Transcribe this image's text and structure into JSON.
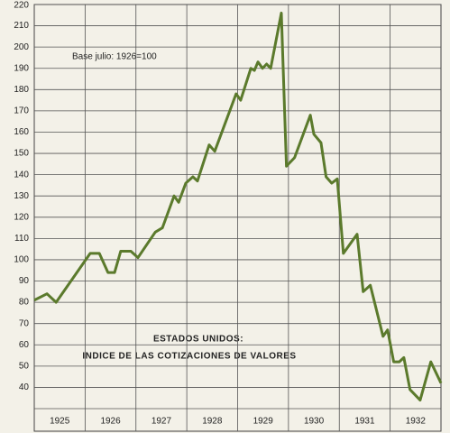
{
  "chart_data": {
    "type": "line",
    "annotations": [
      "Base julio: 1926=100",
      "ESTADOS UNIDOS:",
      "INDICE DE LAS COTIZACIONES DE VALORES"
    ],
    "categories": [
      "1925",
      "1926",
      "1927",
      "1928",
      "1929",
      "1930",
      "1931",
      "1932"
    ],
    "xlim": [
      1925,
      1933
    ],
    "ylim": [
      30,
      220
    ],
    "yticks": [
      40,
      50,
      60,
      70,
      80,
      90,
      100,
      110,
      120,
      130,
      140,
      150,
      160,
      170,
      180,
      190,
      200,
      210,
      220
    ],
    "grid": true,
    "series": [
      {
        "color": "#5b7a2c",
        "x": [
          1925.0,
          1925.25,
          1925.43,
          1926.1,
          1926.28,
          1926.45,
          1926.58,
          1926.7,
          1926.9,
          1927.04,
          1927.38,
          1927.52,
          1927.75,
          1927.84,
          1927.98,
          1928.12,
          1928.21,
          1928.44,
          1928.55,
          1928.97,
          1929.06,
          1929.26,
          1929.33,
          1929.4,
          1929.49,
          1929.57,
          1929.65,
          1929.86,
          1929.96,
          1930.12,
          1930.43,
          1930.5,
          1930.64,
          1930.74,
          1930.85,
          1930.96,
          1931.08,
          1931.35,
          1931.47,
          1931.61,
          1931.86,
          1931.95,
          1932.07,
          1932.18,
          1932.27,
          1932.39,
          1932.59,
          1932.8,
          1933.0
        ],
        "values": [
          81,
          84,
          80,
          103,
          103,
          94,
          94,
          104,
          104,
          101,
          113,
          115,
          130,
          127,
          136,
          139,
          137,
          154,
          151,
          178,
          175,
          190,
          189,
          193,
          190,
          192,
          190,
          216,
          144,
          148,
          168,
          159,
          155,
          139,
          136,
          138,
          103,
          112,
          85,
          88,
          64,
          67,
          52,
          52,
          54,
          39,
          34,
          52,
          42
        ]
      }
    ]
  }
}
